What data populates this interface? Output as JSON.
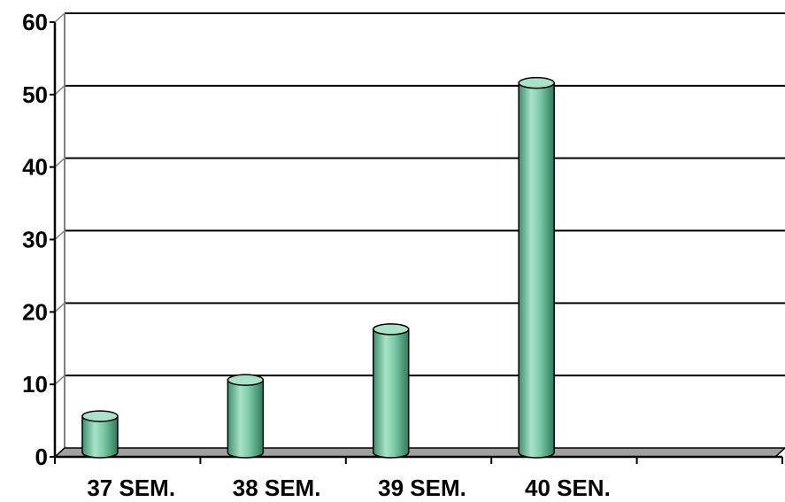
{
  "chart_data": {
    "type": "bar",
    "style": "3d-cylinder",
    "categories": [
      "37 SEM.",
      "38 SEM.",
      "39 SEM.",
      "40 SEN.",
      ""
    ],
    "values": [
      5,
      10,
      17,
      51,
      null
    ],
    "ylim": [
      0,
      60
    ],
    "yticks": [
      "0",
      "10",
      "20",
      "30",
      "40",
      "50",
      "60"
    ],
    "grid": true,
    "legend": "none",
    "colors": {
      "bar": "#6fbf9f",
      "bar_dark": "#2e7a5c",
      "bar_light": "#a9e2c8",
      "grid": "#000000",
      "floor": "#a0a0a0"
    }
  }
}
